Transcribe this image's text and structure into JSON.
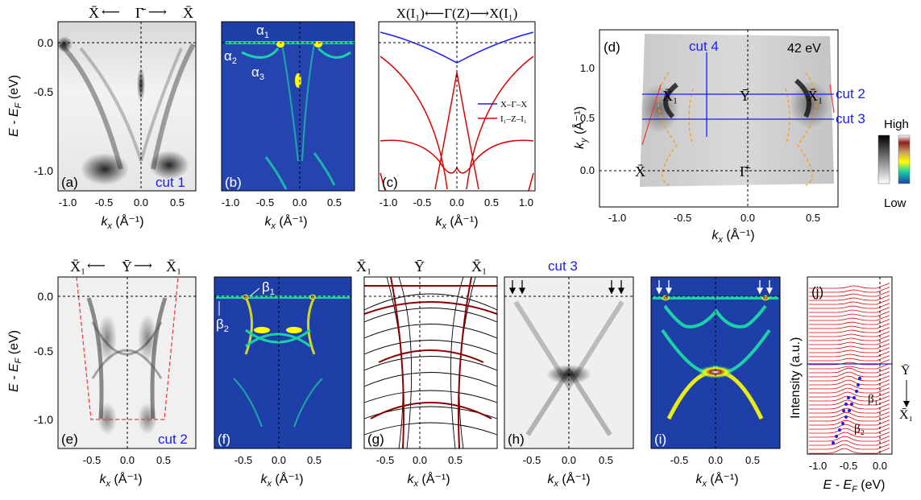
{
  "colors": {
    "cmap_low": "#1f3fa8",
    "cmap_mid": "#19d2a7",
    "cmap_high": "#ffff00",
    "calc_blue": "#1a1aff",
    "calc_red": "#e00000",
    "dash_red": "#ff3030",
    "orange_dash": "#ff9900",
    "slab_brown": "#8b0000"
  },
  "top_row": {
    "a": {
      "path_left": "X̄",
      "path_mid": "Γ̄",
      "path_right": "X̄",
      "ylabel": "E - E",
      "ylabel_sub": "F",
      "ylabel_unit": " (eV)",
      "cut": "cut 1",
      "panel": "(a)"
    },
    "b": {
      "panel": "(b)",
      "alpha1": "α",
      "alpha1_sub": "1",
      "alpha2": "α",
      "alpha2_sub": "2",
      "alpha3": "α",
      "alpha3_sub": "3"
    },
    "c": {
      "panel": "(c)",
      "path": "X(I₁)⟵Γ(Z)⟶X(I₁)",
      "legend1": "X–Γ–X",
      "legend2": "I₁–Z–I₁"
    },
    "d": {
      "panel": "(d)",
      "energy": "42 eV",
      "cut4": "cut 4",
      "cut2": "cut 2",
      "cut3": "cut 3",
      "X1_left": "X̄₁",
      "Y": "Ȳ",
      "X1_right": "X̄₁",
      "X": "X̄",
      "Gamma": "Γ̄",
      "ylabel": "k",
      "ylabel_sub": "y",
      "ylabel_unit": " (Å⁻¹)",
      "scale_high": "High",
      "scale_low": "Low"
    }
  },
  "bottom_row": {
    "e": {
      "panel": "(e)",
      "path_left": "X̄₁",
      "path_mid": "Ȳ",
      "path_right": "X̄₁",
      "cut": "cut 2"
    },
    "f": {
      "panel": "(f)",
      "beta1": "β",
      "beta1_sub": "1",
      "beta2": "β",
      "beta2_sub": "2"
    },
    "g": {
      "panel": "(g)",
      "left": "X̄₁",
      "mid": "Ȳ",
      "right": "X̄₁"
    },
    "h": {
      "panel": "(h)",
      "cut": "cut 3"
    },
    "i": {
      "panel": "(i)"
    },
    "j": {
      "panel": "(j)",
      "ylabel": "Intensity (a.u.)",
      "xlabel": "E - E",
      "xlabel_sub": "F",
      "xlabel_unit": " (eV)",
      "path_top": "Ȳ",
      "path_bottom": "X̄₁",
      "beta1": "β₁",
      "beta2": "β₂"
    }
  },
  "axes": {
    "kx_label": "k",
    "kx_sub": "x",
    "kx_unit": " (Å⁻¹)",
    "energy_ticks": [
      "0.0",
      "-0.5",
      "-1.0"
    ],
    "top_kx_ticks": [
      "-1.0",
      "-0.5",
      "0.0",
      "0.5"
    ],
    "c_kx_ticks": [
      "-1.0",
      "-0.5",
      "0.0",
      "0.5",
      "1.0"
    ],
    "d_kx_ticks": [
      "-1.0",
      "-0.5",
      "0.0",
      "0.5"
    ],
    "d_ky_ticks": [
      "1.0",
      "0.5",
      "0.0"
    ],
    "bottom_kx_ticks": [
      "-0.5",
      "0.0",
      "0.5"
    ],
    "j_ticks": [
      "-1.0",
      "-0.5",
      "0.0"
    ]
  }
}
